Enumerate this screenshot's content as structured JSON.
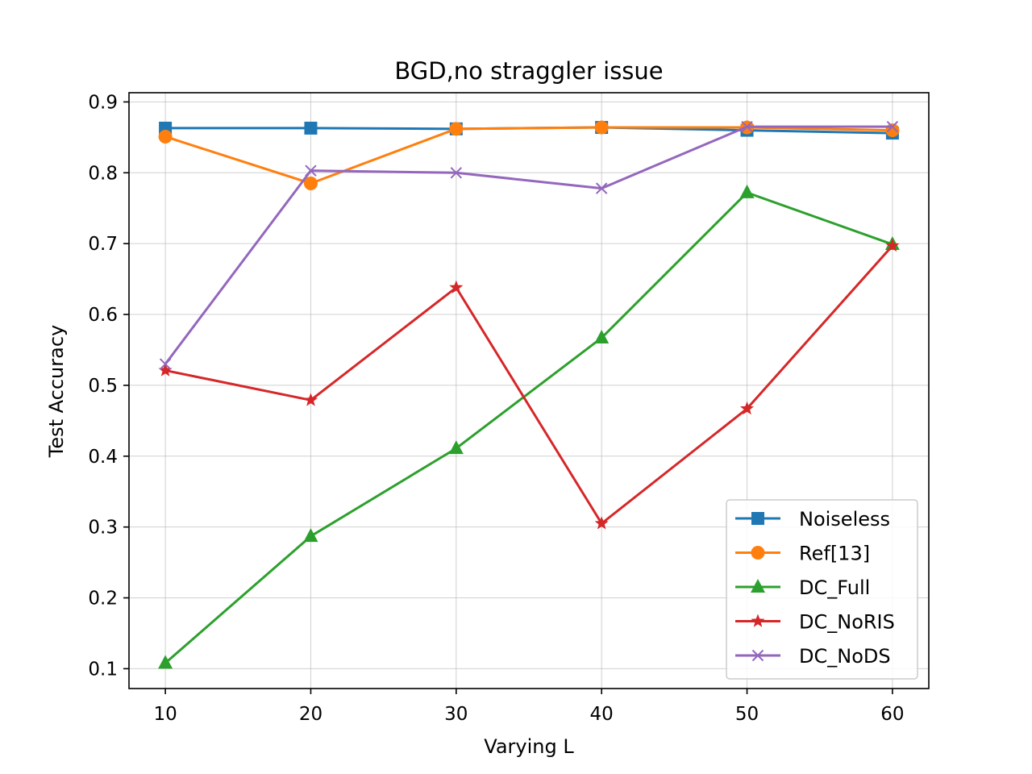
{
  "chart_data": {
    "type": "line",
    "title": "BGD,no straggler issue",
    "xlabel": "Varying L",
    "ylabel": "Test Accuracy",
    "x": [
      10,
      20,
      30,
      40,
      50,
      60
    ],
    "xlim": [
      7.5,
      62.5
    ],
    "ylim": [
      0.072,
      0.913
    ],
    "xticks": [
      10,
      20,
      30,
      40,
      50,
      60
    ],
    "yticks": [
      0.1,
      0.2,
      0.3,
      0.4,
      0.5,
      0.6,
      0.7,
      0.8,
      0.9
    ],
    "grid": true,
    "legend_position": "lower-right",
    "series": [
      {
        "name": "Noiseless",
        "color": "#1f77b4",
        "marker": "square",
        "values": [
          0.863,
          0.863,
          0.862,
          0.864,
          0.86,
          0.856
        ]
      },
      {
        "name": "Ref[13]",
        "color": "#ff7f0e",
        "marker": "circle",
        "values": [
          0.851,
          0.785,
          0.862,
          0.864,
          0.864,
          0.86
        ]
      },
      {
        "name": "DC_Full",
        "color": "#2ca02c",
        "marker": "triangle",
        "values": [
          0.108,
          0.287,
          0.411,
          0.567,
          0.772,
          0.699
        ]
      },
      {
        "name": "DC_NoRIS",
        "color": "#d62728",
        "marker": "star",
        "values": [
          0.521,
          0.479,
          0.638,
          0.305,
          0.467,
          0.697
        ]
      },
      {
        "name": "DC_NoDS",
        "color": "#9467bd",
        "marker": "x",
        "values": [
          0.53,
          0.803,
          0.8,
          0.778,
          0.865,
          0.865
        ]
      }
    ]
  }
}
